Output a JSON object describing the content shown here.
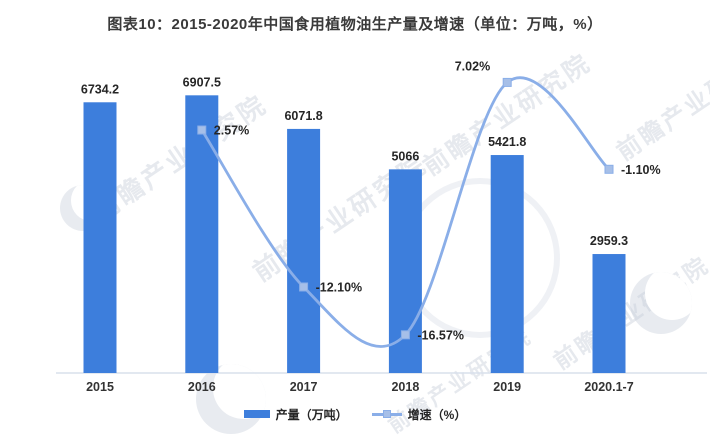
{
  "title": "图表10：2015-2020年中国食用植物油生产量及增速（单位：万吨，%）",
  "watermark": {
    "text": "前瞻产业研究院"
  },
  "legend": [
    {
      "label": "产量（万吨）",
      "swatch": "bar-swatch",
      "color": "#3D7EDC"
    },
    {
      "label": "增速（%）",
      "swatch": "line-swatch",
      "color": "#8AAEE8"
    }
  ],
  "colors": {
    "bar": "#3D7EDC",
    "line": "#8AAEE8",
    "marker_fill": "#A6BFE8",
    "axis_line": "#D8E0EC",
    "label_text": "#262626",
    "axis_text": "#333333"
  },
  "chart_data": {
    "type": "bar",
    "subtype": "bar+line combo, dual axis",
    "title": "图表10：2015-2020年中国食用植物油生产量及增速（单位：万吨，%）",
    "categories": [
      "2015",
      "2016",
      "2017",
      "2018",
      "2019",
      "2020.1-7"
    ],
    "series": [
      {
        "name": "产量（万吨）",
        "chart_type": "bar",
        "axis": "left",
        "unit": "万吨",
        "color": "#3D7EDC",
        "values": [
          6734.2,
          6907.5,
          6071.8,
          5066,
          5421.8,
          2959.3
        ],
        "data_labels": [
          "6734.2",
          "6907.5",
          "6071.8",
          "5066",
          "5421.8",
          "2959.3"
        ]
      },
      {
        "name": "增速（%）",
        "chart_type": "line",
        "line_style": "smooth",
        "axis": "right",
        "unit": "%",
        "color": "#8AAEE8",
        "marker": "square",
        "marker_color": "#A6BFE8",
        "values": [
          null,
          2.57,
          -12.1,
          -16.57,
          7.02,
          -1.1
        ],
        "data_labels": [
          null,
          "2.57%",
          "-12.10%",
          "-16.57%",
          "7.02%",
          "-1.10%"
        ]
      }
    ],
    "xlabel": "",
    "ylabel": "",
    "y1lim": [
      0,
      7500
    ],
    "y2lim": [
      -20.14,
      8.04
    ],
    "grid": false,
    "legend_position": "bottom"
  }
}
